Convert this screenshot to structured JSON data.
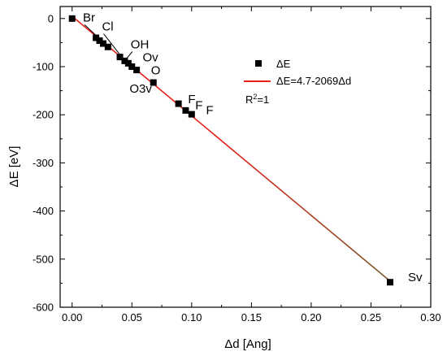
{
  "chart_data": {
    "type": "scatter",
    "xlabel": "Δd [Ang]",
    "ylabel": "ΔE [eV]",
    "xlim": [
      -0.01,
      0.3
    ],
    "ylim": [
      -600,
      25
    ],
    "xticks": [
      0.0,
      0.05,
      0.1,
      0.15,
      0.2,
      0.25,
      0.3
    ],
    "xtick_labels": [
      "0.00",
      "0.05",
      "0.10",
      "0.15",
      "0.20",
      "0.25",
      "0.30"
    ],
    "yticks": [
      0,
      -100,
      -200,
      -300,
      -400,
      -500,
      -600
    ],
    "ytick_labels": [
      "0",
      "-100",
      "-200",
      "-300",
      "-400",
      "-500",
      "-600"
    ],
    "grid": false,
    "legend_position": "top-right",
    "series": [
      {
        "name": "ΔE",
        "kind": "scatter",
        "marker": "square",
        "color": "#000000",
        "x": [
          0.0,
          0.02,
          0.023,
          0.026,
          0.03,
          0.04,
          0.044,
          0.047,
          0.05,
          0.054,
          0.068,
          0.089,
          0.095,
          0.1,
          0.266
        ],
        "y": [
          0,
          -40,
          -46,
          -52,
          -59,
          -80,
          -88,
          -93,
          -100,
          -107,
          -133,
          -177,
          -191,
          -199,
          -548
        ]
      },
      {
        "name": "ΔE=4.7-2069Δd",
        "kind": "fit-line",
        "color": "#e8201a",
        "color_end": "#7a5a2a",
        "intercept": 4.7,
        "slope": -2069,
        "x_range": [
          0.0,
          0.266
        ]
      }
    ],
    "annotation_text": "R²=1",
    "point_labels": [
      {
        "text": "Br",
        "x": 0.02,
        "y": -40,
        "label_x": 0.009,
        "label_y": -6,
        "leader": true
      },
      {
        "text": "Cl",
        "x": 0.04,
        "y": -80,
        "label_x": 0.025,
        "label_y": -25,
        "leader": true
      },
      {
        "text": "OH",
        "x": 0.045,
        "y": -90,
        "label_x": 0.049,
        "label_y": -62,
        "leader": true
      },
      {
        "text": "Ov",
        "x": 0.058,
        "y": -107,
        "label_x": 0.059,
        "label_y": -89,
        "leader": false
      },
      {
        "text": "O",
        "x": 0.066,
        "y": -120,
        "label_x": 0.066,
        "label_y": -116,
        "leader": false
      },
      {
        "text": "O3v",
        "x": 0.058,
        "y": -150,
        "label_x": 0.048,
        "label_y": -154,
        "leader": false
      },
      {
        "text": "F",
        "x": 0.09,
        "y": -177,
        "label_x": 0.097,
        "label_y": -176,
        "leader": false
      },
      {
        "text": "F",
        "x": 0.094,
        "y": -187,
        "label_x": 0.103,
        "label_y": -189,
        "leader": false
      },
      {
        "text": "F",
        "x": 0.098,
        "y": -196,
        "label_x": 0.112,
        "label_y": -199,
        "leader": false
      },
      {
        "text": "Sv",
        "x": 0.27,
        "y": -547,
        "label_x": 0.281,
        "label_y": -546,
        "leader": false
      }
    ]
  }
}
